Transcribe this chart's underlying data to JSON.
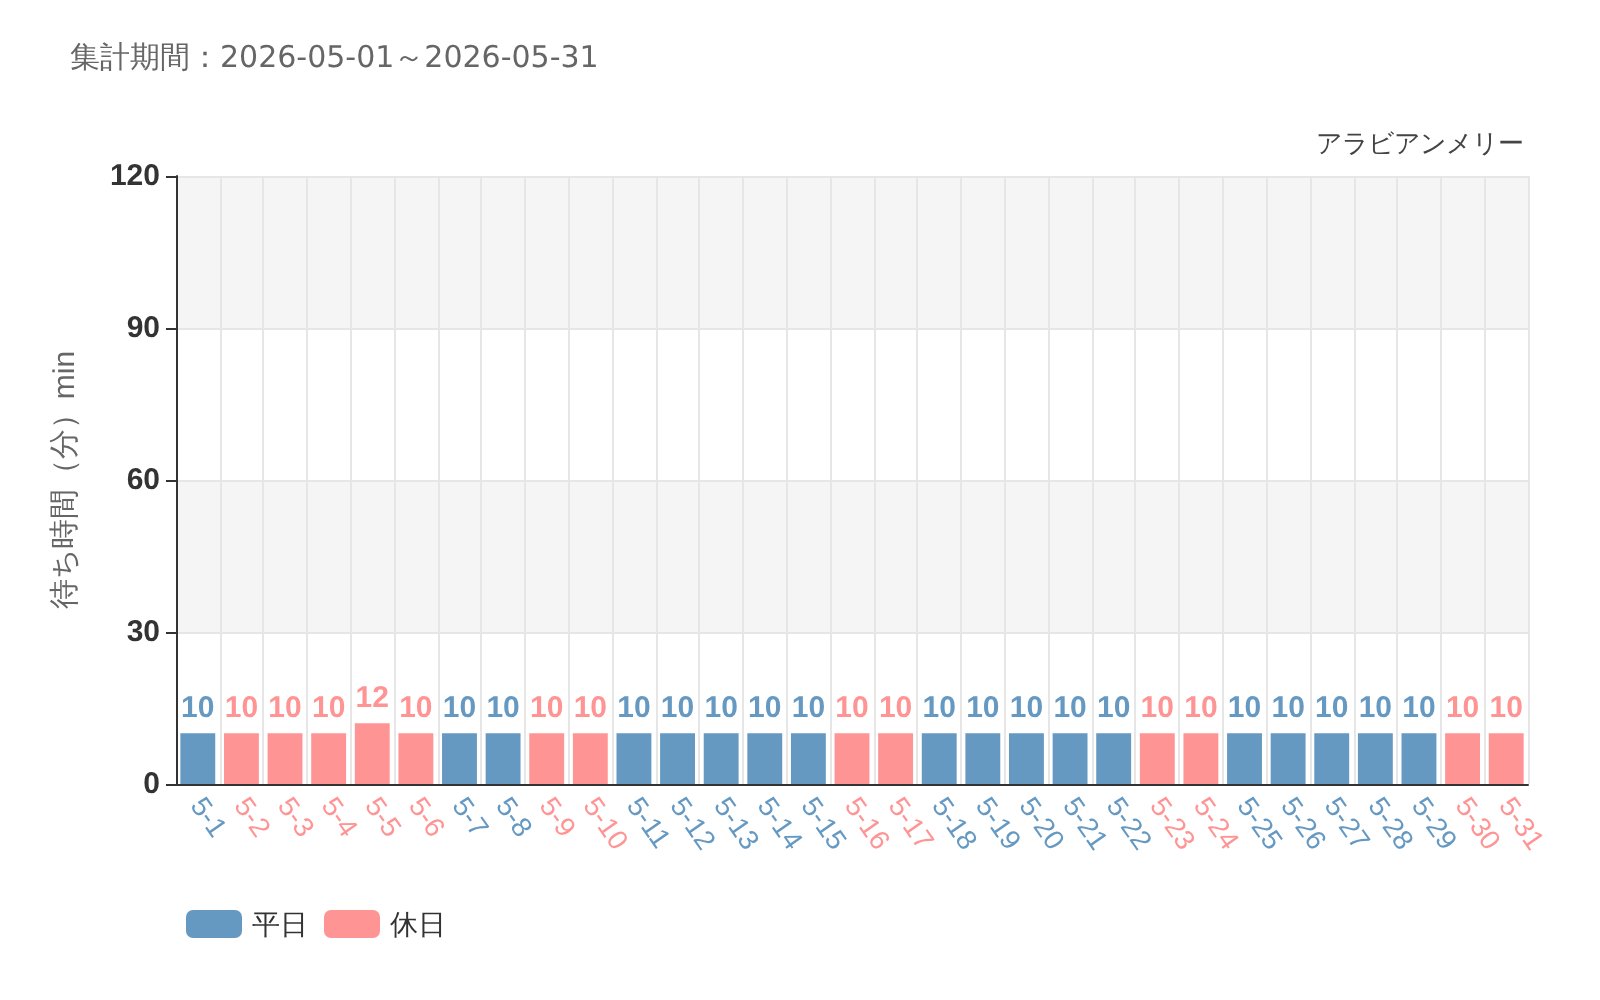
{
  "chart_data": {
    "type": "bar",
    "title": "集計期間：2026-05-01～2026-05-31",
    "ylabel": "待ち時間（分）min",
    "annotations": [
      "アラビアンメリー"
    ],
    "categories": [
      "5-1",
      "5-2",
      "5-3",
      "5-4",
      "5-5",
      "5-6",
      "5-7",
      "5-8",
      "5-9",
      "5-10",
      "5-11",
      "5-12",
      "5-13",
      "5-14",
      "5-15",
      "5-16",
      "5-17",
      "5-18",
      "5-19",
      "5-20",
      "5-21",
      "5-22",
      "5-23",
      "5-24",
      "5-25",
      "5-26",
      "5-27",
      "5-28",
      "5-29",
      "5-30",
      "5-31"
    ],
    "series": [
      {
        "name": "平日",
        "color": "#6699c2",
        "values": [
          10,
          null,
          null,
          null,
          null,
          null,
          10,
          10,
          null,
          null,
          10,
          10,
          10,
          10,
          10,
          null,
          null,
          10,
          10,
          10,
          10,
          10,
          null,
          null,
          10,
          10,
          10,
          10,
          10,
          null,
          null
        ]
      },
      {
        "name": "休日",
        "color": "#ff9494",
        "values": [
          null,
          10,
          10,
          10,
          12,
          10,
          null,
          null,
          10,
          10,
          null,
          null,
          null,
          null,
          null,
          10,
          10,
          null,
          null,
          null,
          null,
          null,
          10,
          10,
          null,
          null,
          null,
          null,
          null,
          10,
          10
        ]
      }
    ],
    "stacked": true,
    "ylim": [
      0,
      120
    ],
    "yticks": [
      0,
      30,
      60,
      90,
      120
    ],
    "grid": true,
    "legend": "bottom left",
    "data_labels": true
  }
}
